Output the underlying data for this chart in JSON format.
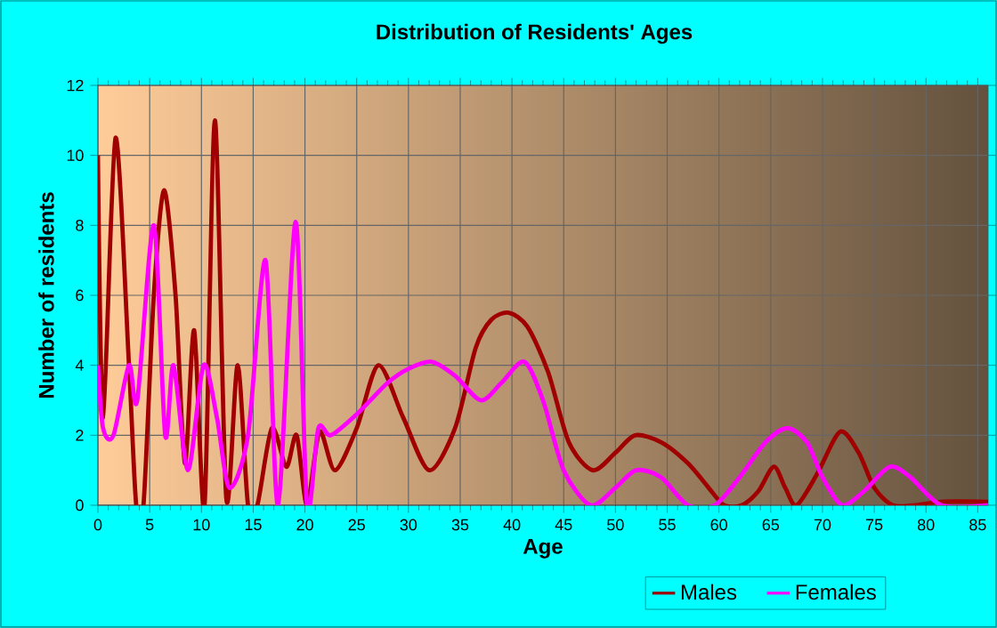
{
  "chart_data": {
    "type": "line",
    "title": "Distribution of Residents' Ages",
    "xlabel": "Age",
    "ylabel": "Number of residents",
    "xlim": [
      0,
      86
    ],
    "xticks": [
      0,
      5,
      10,
      15,
      20,
      25,
      30,
      35,
      40,
      45,
      50,
      55,
      60,
      65,
      70,
      75,
      80,
      85
    ],
    "ylim": [
      0,
      12
    ],
    "yticks": [
      0,
      2,
      4,
      6,
      8,
      10,
      12
    ],
    "grid": true,
    "legend": "bottom",
    "marker": "none",
    "line_style": "solid",
    "series": [
      {
        "name": "Males",
        "color": "#a00000",
        "x": [
          0,
          0.5,
          1.7,
          3,
          3.7,
          4.4,
          5.4,
          6.4,
          7.5,
          8.4,
          9.3,
          10.3,
          11.3,
          12.4,
          13.5,
          14.5,
          15.4,
          16.8,
          18.2,
          19.2,
          20.2,
          21.4,
          22.9,
          25,
          27.1,
          29.5,
          32,
          34.5,
          36.5,
          38,
          39.7,
          41.5,
          43.5,
          45.5,
          47.8,
          50,
          51.9,
          54.4,
          57,
          59,
          60.5,
          62.2,
          63.8,
          65.3,
          66.4,
          67.5,
          69.5,
          71.7,
          73.5,
          75,
          76.8,
          79,
          81.5,
          86
        ],
        "values": [
          10,
          2.5,
          10.5,
          4,
          0,
          0,
          6,
          9,
          6,
          1.2,
          5,
          0,
          11,
          0.2,
          4,
          0,
          0,
          2.2,
          1.1,
          2,
          0,
          2.1,
          1,
          2.2,
          4,
          2.5,
          1,
          2.2,
          4.5,
          5.3,
          5.5,
          5.1,
          3.8,
          1.8,
          1,
          1.5,
          2,
          1.8,
          1.2,
          0.5,
          0,
          0,
          0.4,
          1.1,
          0.5,
          0,
          0.9,
          2.1,
          1.5,
          0.5,
          0,
          0,
          0.1,
          0.1
        ]
      },
      {
        "name": "Females",
        "color": "#ff00ff",
        "x": [
          0,
          0.5,
          1.5,
          3,
          3.8,
          5.4,
          6.5,
          7.3,
          8.7,
          10.2,
          11.5,
          12.7,
          14.5,
          16.2,
          17.4,
          19.1,
          20.2,
          21.3,
          22.5,
          25,
          28,
          30,
          32.2,
          34.5,
          37,
          39,
          41.2,
          43,
          45,
          47.6,
          50,
          52,
          54.4,
          57,
          59.6,
          62,
          64.5,
          66.6,
          68.5,
          70,
          71.9,
          74,
          76.5,
          78.5,
          81.5,
          86
        ],
        "values": [
          4,
          2.2,
          2,
          4,
          3,
          8,
          2,
          4,
          1,
          4,
          2.5,
          0.5,
          2,
          7,
          0,
          8.1,
          0,
          2.2,
          2,
          2.6,
          3.5,
          3.9,
          4.1,
          3.7,
          3,
          3.5,
          4.1,
          3,
          1,
          0,
          0.5,
          1,
          0.8,
          0,
          0,
          0.8,
          1.8,
          2.2,
          1.8,
          0.8,
          0,
          0.4,
          1.1,
          0.8,
          0,
          0
        ]
      }
    ]
  }
}
